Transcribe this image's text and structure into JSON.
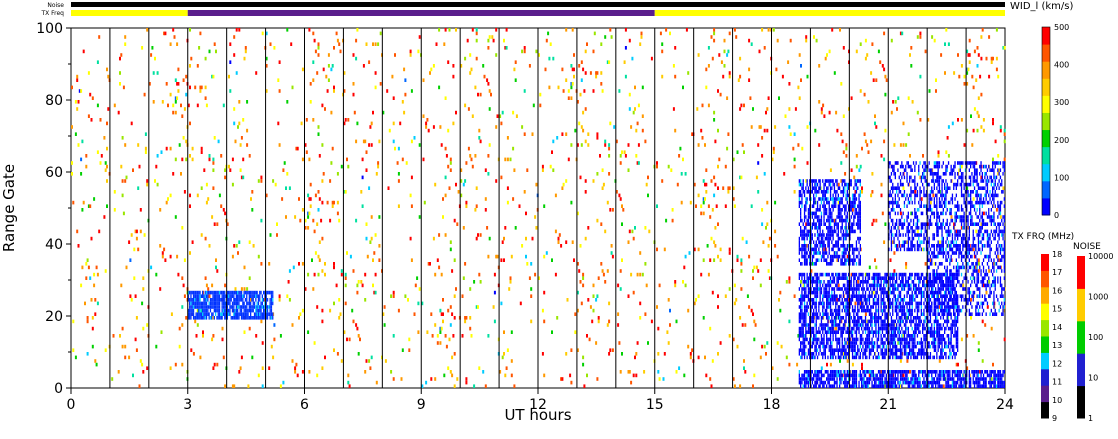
{
  "chart_data": {
    "type": "heatmap",
    "xlabel": "UT hours",
    "ylabel": "Range Gate",
    "xlim": [
      0,
      24
    ],
    "ylim": [
      0,
      100
    ],
    "x_ticks": [
      "0",
      "3",
      "6",
      "9",
      "12",
      "15",
      "18",
      "21",
      "24"
    ],
    "y_ticks": [
      "0",
      "20",
      "40",
      "60",
      "80",
      "100"
    ],
    "grid": "vertical hourly lines",
    "top_bars": {
      "noise_label": "Noise",
      "txfreq_label": "TX Freq",
      "txfreq_segments": [
        {
          "start": 0,
          "end": 3,
          "color": "#ffff00"
        },
        {
          "start": 3,
          "end": 15,
          "color": "#5a1e8c"
        },
        {
          "start": 15,
          "end": 24,
          "color": "#ffff00"
        }
      ]
    },
    "colorbar_main": {
      "title": "WID_l (km/s)",
      "ticks": [
        "0",
        "100",
        "200",
        "300",
        "400",
        "500"
      ],
      "range": [
        0,
        500
      ],
      "colors": [
        "#0000ff",
        "#0066ff",
        "#00ccff",
        "#00e0a0",
        "#00d000",
        "#99e600",
        "#ffff00",
        "#ffcc00",
        "#ff9900",
        "#ff5500",
        "#ff0000"
      ]
    },
    "colorbar_freq": {
      "title": "TX FRQ (MHz)",
      "ticks": [
        "9",
        "10",
        "11",
        "12",
        "13",
        "14",
        "15",
        "16",
        "17",
        "18"
      ],
      "colors": [
        "#000000",
        "#5a1e8c",
        "#2020d0",
        "#00ccff",
        "#00cc00",
        "#99e600",
        "#ffff00",
        "#ffaa00",
        "#ff5500",
        "#ff0000"
      ]
    },
    "colorbar_noise": {
      "title": "NOISE",
      "ticks": [
        "1",
        "10",
        "100",
        "1000",
        "10000"
      ],
      "colors": [
        "#000000",
        "#2020d0",
        "#00cc00",
        "#ffcc00",
        "#ff0000"
      ]
    },
    "scatter_regions": [
      {
        "x": [
          3.0,
          5.2
        ],
        "y": [
          19,
          27
        ],
        "color": "#0033ff",
        "density": 0.85
      },
      {
        "x": [
          18.7,
          20.3
        ],
        "y": [
          34,
          58
        ],
        "color": "#0000ff",
        "density": 0.6
      },
      {
        "x": [
          18.7,
          22.8
        ],
        "y": [
          8,
          32
        ],
        "color": "#0000ff",
        "density": 0.65
      },
      {
        "x": [
          21.0,
          24.0
        ],
        "y": [
          38,
          63
        ],
        "color": "#0000ff",
        "density": 0.45
      },
      {
        "x": [
          18.7,
          24.0
        ],
        "y": [
          0,
          5
        ],
        "color": "#0000ff",
        "density": 0.75
      },
      {
        "x": [
          22.0,
          24.0
        ],
        "y": [
          20,
          40
        ],
        "color": "#0000ff",
        "density": 0.4
      }
    ],
    "noise_density": 0.025
  }
}
